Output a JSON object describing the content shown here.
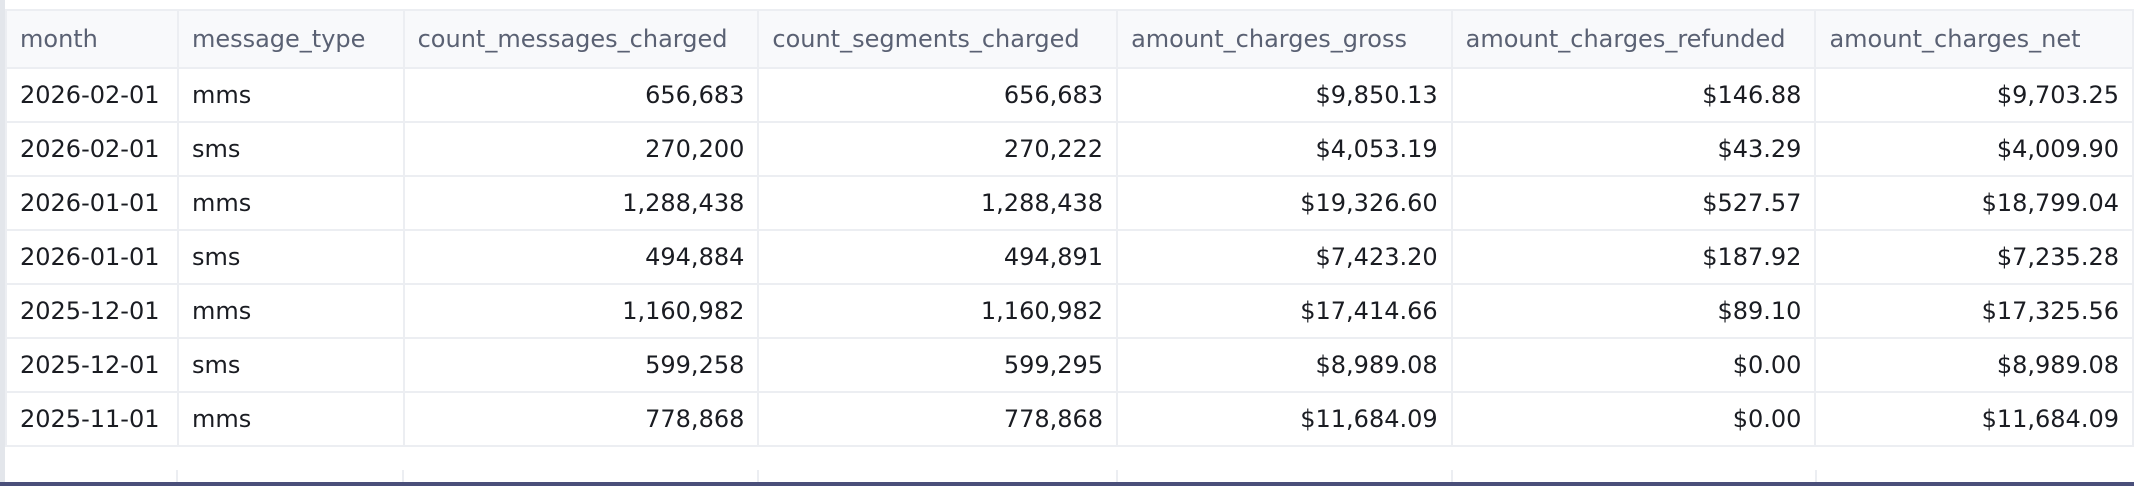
{
  "table": {
    "columns": [
      {
        "key": "month",
        "label": "month",
        "align": "left"
      },
      {
        "key": "message_type",
        "label": "message_type",
        "align": "left"
      },
      {
        "key": "count_messages_charged",
        "label": "count_messages_charged",
        "align": "right"
      },
      {
        "key": "count_segments_charged",
        "label": "count_segments_charged",
        "align": "right"
      },
      {
        "key": "amount_charges_gross",
        "label": "amount_charges_gross",
        "align": "right"
      },
      {
        "key": "amount_charges_refunded",
        "label": "amount_charges_refunded",
        "align": "right"
      },
      {
        "key": "amount_charges_net",
        "label": "amount_charges_net",
        "align": "right"
      }
    ],
    "rows": [
      [
        "2026-02-01",
        "mms",
        "656,683",
        "656,683",
        "$9,850.13",
        "$146.88",
        "$9,703.25"
      ],
      [
        "2026-02-01",
        "sms",
        "270,200",
        "270,222",
        "$4,053.19",
        "$43.29",
        "$4,009.90"
      ],
      [
        "2026-01-01",
        "mms",
        "1,288,438",
        "1,288,438",
        "$19,326.60",
        "$527.57",
        "$18,799.04"
      ],
      [
        "2026-01-01",
        "sms",
        "494,884",
        "494,891",
        "$7,423.20",
        "$187.92",
        "$7,235.28"
      ],
      [
        "2025-12-01",
        "mms",
        "1,160,982",
        "1,160,982",
        "$17,414.66",
        "$89.10",
        "$17,325.56"
      ],
      [
        "2025-12-01",
        "sms",
        "599,258",
        "599,295",
        "$8,989.08",
        "$0.00",
        "$8,989.08"
      ],
      [
        "2025-11-01",
        "mms",
        "778,868",
        "778,868",
        "$11,684.09",
        "$0.00",
        "$11,684.09"
      ]
    ]
  }
}
